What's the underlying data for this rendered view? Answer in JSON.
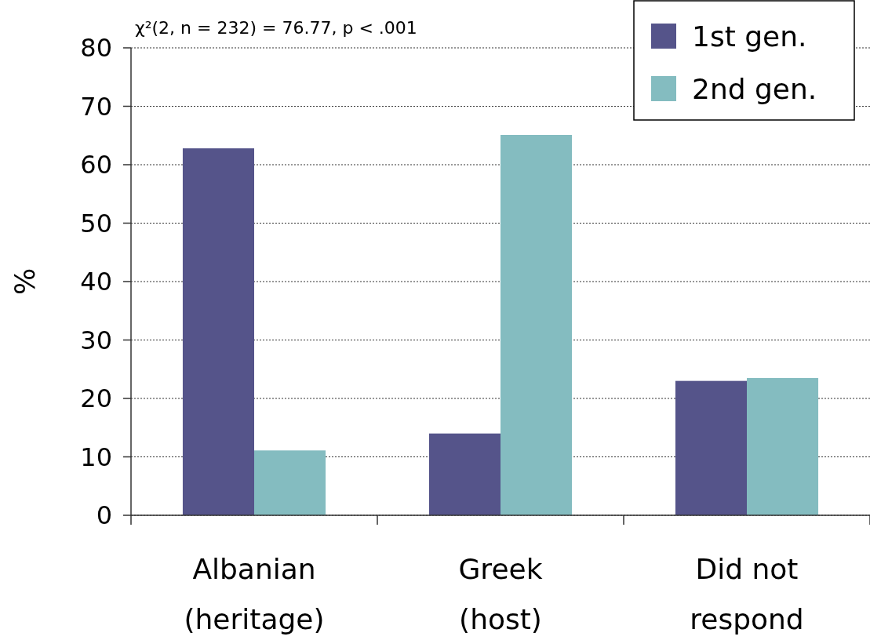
{
  "chart_data": {
    "type": "bar",
    "ylabel": "%",
    "categories": [
      "Albanian\n(heritage)",
      "Greek\n(host)",
      "Did not\nrespond"
    ],
    "series": [
      {
        "name": "1st gen.",
        "color": "#55548a",
        "values": [
          62.8,
          14,
          23
        ]
      },
      {
        "name": "2nd gen.",
        "color": "#84bcc0",
        "values": [
          11.1,
          65.1,
          23.5
        ]
      }
    ],
    "ylim": [
      0,
      80
    ],
    "yticks": [
      0,
      10,
      20,
      30,
      40,
      50,
      60,
      70,
      80
    ],
    "grid": "y",
    "legend": "top right",
    "annotations": [
      "χ²(2, n = 232) = 76.77, p < .001"
    ]
  }
}
